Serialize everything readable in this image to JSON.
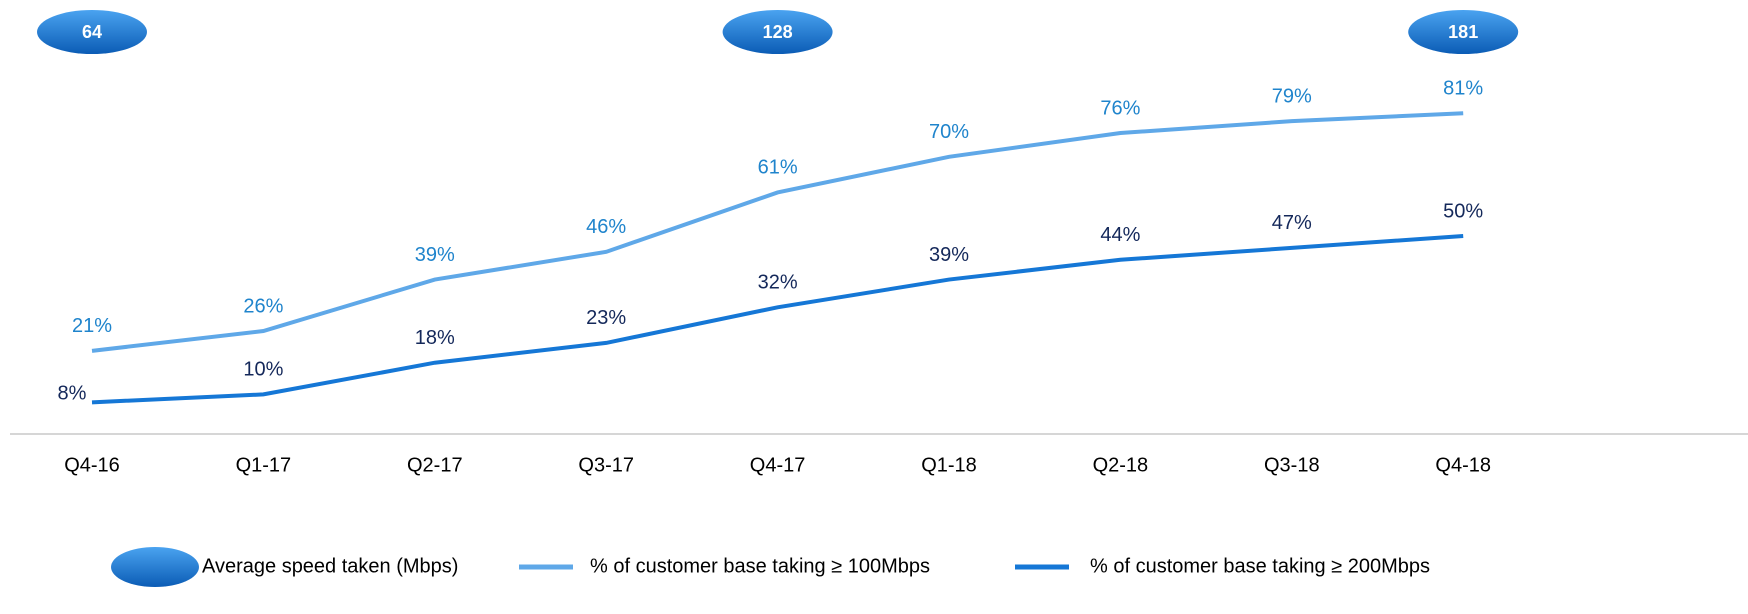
{
  "chart_data": {
    "type": "line",
    "categories": [
      "Q4-16",
      "Q1-17",
      "Q2-17",
      "Q3-17",
      "Q4-17",
      "Q1-18",
      "Q2-18",
      "Q3-18",
      "Q4-18"
    ],
    "ylim": [
      0,
      100
    ],
    "series": [
      {
        "name": "% of customer base taking ≥ 100Mbps",
        "color": "#5fa8e8",
        "values": [
          21,
          26,
          39,
          46,
          61,
          70,
          76,
          79,
          81
        ],
        "value_labels": [
          "21%",
          "26%",
          "39%",
          "46%",
          "61%",
          "70%",
          "76%",
          "79%",
          "81%"
        ]
      },
      {
        "name": "% of customer base taking ≥ 200Mbps",
        "color": "#1577d6",
        "values": [
          8,
          10,
          18,
          23,
          32,
          39,
          44,
          47,
          50
        ],
        "value_labels": [
          "8%",
          "10%",
          "18%",
          "23%",
          "32%",
          "39%",
          "44%",
          "47%",
          "50%"
        ]
      }
    ],
    "bubbles": {
      "name": "Average speed taken (Mbps)",
      "color": "#1a73d0",
      "values": [
        64,
        null,
        null,
        null,
        128,
        null,
        null,
        null,
        181
      ]
    }
  }
}
